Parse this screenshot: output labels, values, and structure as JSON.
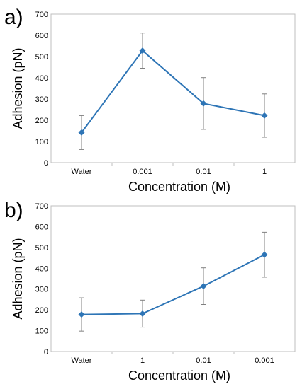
{
  "chart_data": [
    {
      "type": "line",
      "panel_label": "a)",
      "categories": [
        "Water",
        "0.001",
        "0.01",
        "1"
      ],
      "series": [
        {
          "values": [
            142,
            528,
            279,
            222
          ],
          "errors": [
            80,
            83,
            122,
            102
          ]
        }
      ],
      "xlabel": "Concentration (M)",
      "ylabel": "Adhesion (pN)",
      "ylim": [
        0,
        700
      ],
      "yticks": [
        "0",
        "100",
        "200",
        "300",
        "400",
        "500",
        "600",
        "700"
      ],
      "grid": false,
      "color": "#2E75B6"
    },
    {
      "type": "line",
      "panel_label": "b)",
      "categories": [
        "Water",
        "1",
        "0.01",
        "0.001"
      ],
      "series": [
        {
          "values": [
            178,
            182,
            314,
            465
          ],
          "errors": [
            80,
            65,
            88,
            108
          ]
        }
      ],
      "xlabel": "Concentration (M)",
      "ylabel": "Adhesion (pN)",
      "ylim": [
        0,
        700
      ],
      "yticks": [
        "0",
        "100",
        "200",
        "300",
        "400",
        "500",
        "600",
        "700"
      ],
      "grid": false,
      "color": "#2E75B6"
    }
  ]
}
